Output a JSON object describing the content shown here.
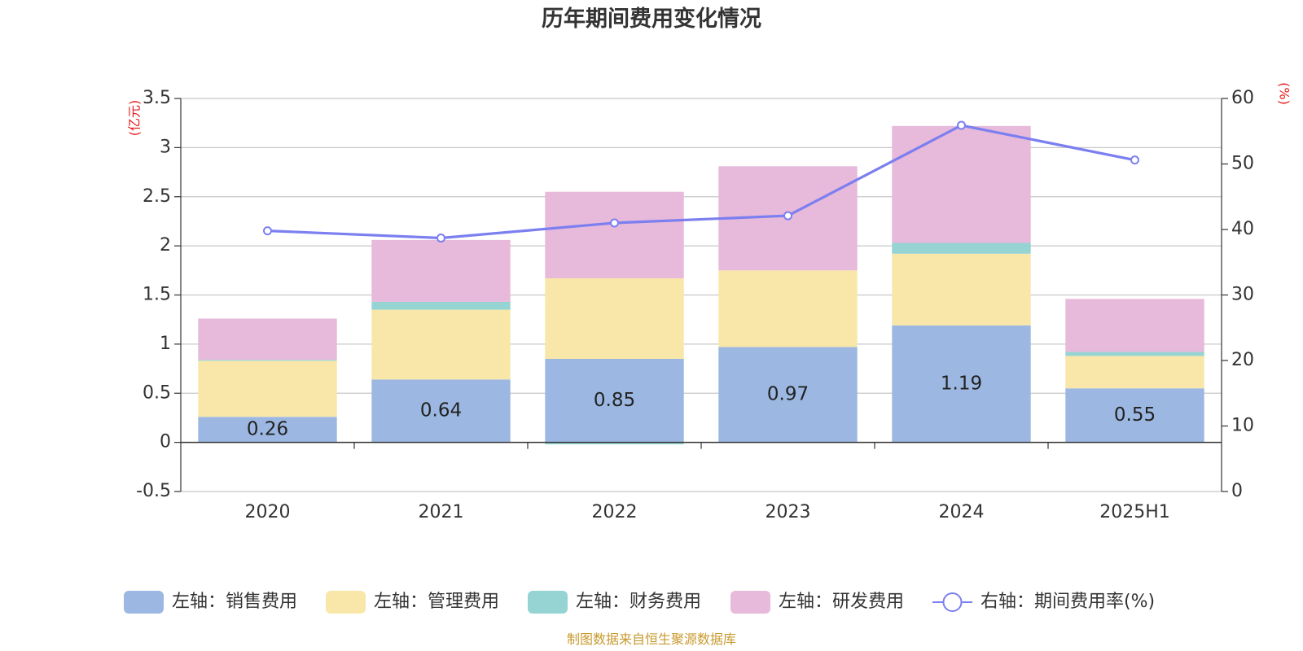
{
  "chart_data": {
    "type": "bar",
    "stacked": true,
    "title": "历年期间费用变化情况",
    "source_note": "制图数据来自恒生聚源数据库",
    "categories": [
      "2020",
      "2021",
      "2022",
      "2023",
      "2024",
      "2025H1"
    ],
    "y_left": {
      "unit": "(亿元)",
      "min": -0.5,
      "max": 3.5,
      "ticks": [
        -0.5,
        0,
        0.5,
        1,
        1.5,
        2,
        2.5,
        3,
        3.5
      ],
      "tick_labels": [
        "-0.5",
        "0",
        "0.5",
        "1",
        "1.5",
        "2",
        "2.5",
        "3",
        "3.5"
      ]
    },
    "y_right": {
      "unit": "(%)",
      "min": 0,
      "max": 60,
      "ticks": [
        0,
        10,
        20,
        30,
        40,
        50,
        60
      ],
      "tick_labels": [
        "0",
        "10",
        "20",
        "30",
        "40",
        "50",
        "60"
      ]
    },
    "grid": true,
    "legend_position": "bottom",
    "series": [
      {
        "name": "左轴：销售费用",
        "axis": "left",
        "kind": "bar",
        "color": "#9cb8e2",
        "values": [
          0.26,
          0.64,
          0.85,
          0.97,
          1.19,
          0.55
        ],
        "labels": [
          "0.26",
          "0.64",
          "0.85",
          "0.97",
          "1.19",
          "0.55"
        ]
      },
      {
        "name": "左轴：管理费用",
        "axis": "left",
        "kind": "bar",
        "color": "#f8e7a8",
        "values": [
          0.57,
          0.71,
          0.82,
          0.78,
          0.73,
          0.33
        ]
      },
      {
        "name": "左轴：财务费用",
        "axis": "left",
        "kind": "bar",
        "color": "#95d4d3",
        "values": [
          0.01,
          0.08,
          -0.02,
          0.0,
          0.11,
          0.04
        ]
      },
      {
        "name": "左轴：研发费用",
        "axis": "left",
        "kind": "bar",
        "color": "#e7b9da",
        "values": [
          0.42,
          0.63,
          0.88,
          1.06,
          1.19,
          0.54
        ]
      },
      {
        "name": "右轴：期间费用率(%)",
        "axis": "right",
        "kind": "line",
        "color": "#7b7ff0",
        "values": [
          39.8,
          38.7,
          41.0,
          42.1,
          55.9,
          50.6
        ]
      }
    ]
  }
}
